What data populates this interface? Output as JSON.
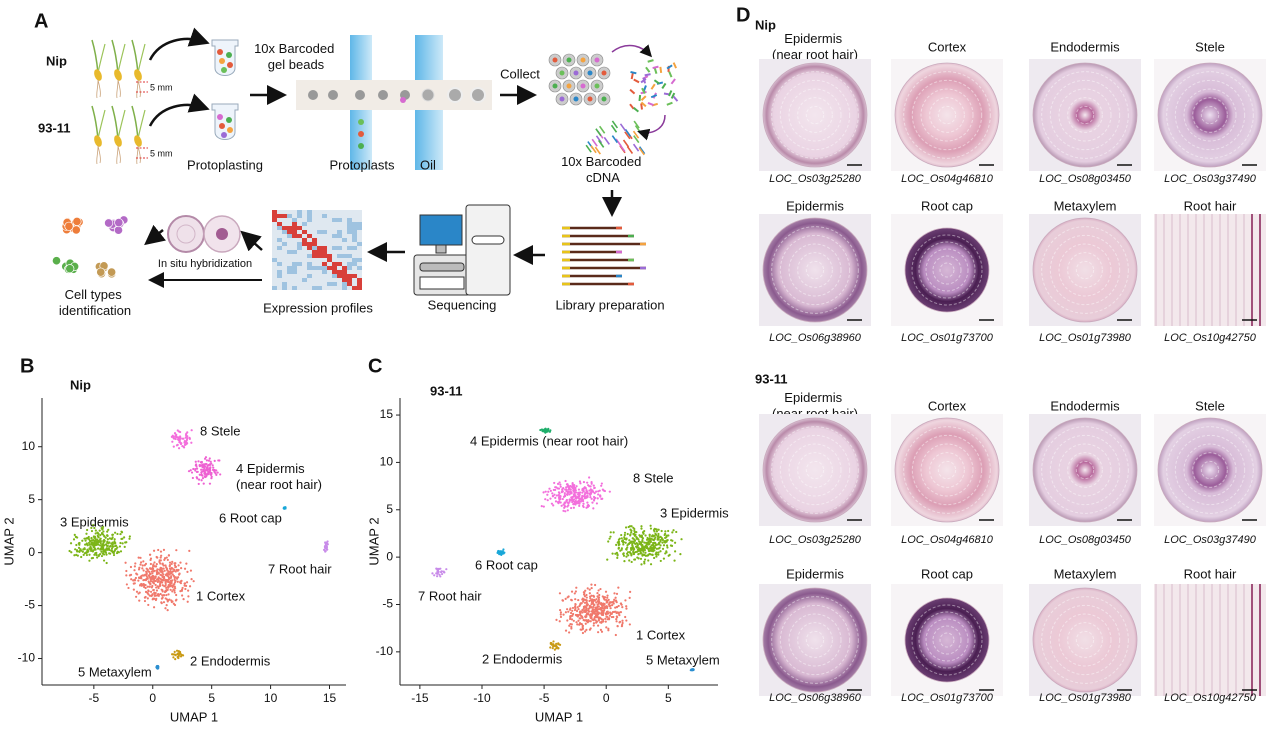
{
  "panel_a": {
    "label": "A",
    "samples": [
      "Nip",
      "93-11"
    ],
    "length": [
      "5 mm",
      "5 mm"
    ],
    "gel_beads": "10x Barcoded gel beads",
    "protoplasting": "Protoplasting",
    "protoplasts": "Protoplasts",
    "oil": "Oil",
    "collect": "Collect",
    "cdna": "10x Barcoded cDNA",
    "library": "Library preparation",
    "sequencing": "Sequencing",
    "profiles": "Expression profiles",
    "in_situ": "In situ hybridization",
    "identification": "Cell types identification"
  },
  "chart_data": [
    {
      "type": "scatter",
      "label": "B",
      "title": "Nip",
      "x_label": "UMAP 1",
      "y_label": "UMAP 2",
      "xlim": [
        -9.4,
        16.4
      ],
      "ylim": [
        -12.5,
        14.6
      ],
      "xticks": [
        -5,
        0,
        5,
        10,
        15
      ],
      "yticks": [
        -10,
        -5,
        0,
        5,
        10
      ],
      "series": [
        {
          "name": "1 Cortex",
          "color": "#f0796c",
          "x": [
            0.6
          ],
          "values": [
            -2.5
          ]
        },
        {
          "name": "2 Endodermis",
          "color": "#c99a14",
          "x": [
            2.1
          ],
          "values": [
            -9.6
          ]
        },
        {
          "name": "3 Epidermis",
          "color": "#7cb518",
          "x": [
            -4.5
          ],
          "values": [
            0.8
          ]
        },
        {
          "name": "4 Epidermis (near root hair)",
          "color": "#ee62d2",
          "x": [
            4.4
          ],
          "values": [
            7.8
          ]
        },
        {
          "name": "5 Metaxylem",
          "color": "#2b8fd0",
          "x": [
            0.4
          ],
          "values": [
            -10.8
          ]
        },
        {
          "name": "6 Root cap",
          "color": "#19a7d8",
          "x": [
            11.2
          ],
          "values": [
            4.2
          ]
        },
        {
          "name": "7 Root hair",
          "color": "#c88be9",
          "x": [
            14.7
          ],
          "values": [
            0.5
          ]
        },
        {
          "name": "8 Stele",
          "color": "#f36fdc",
          "x": [
            2.5
          ],
          "values": [
            10.7
          ]
        }
      ]
    },
    {
      "type": "scatter",
      "label": "C",
      "title": "93-11",
      "x_label": "UMAP 1",
      "y_label": "UMAP 2",
      "xlim": [
        -16.6,
        9.0
      ],
      "ylim": [
        -13.5,
        16.8
      ],
      "xticks": [
        -15,
        -10,
        -5,
        0,
        5
      ],
      "yticks": [
        -10,
        -5,
        0,
        5,
        10,
        15
      ],
      "series": [
        {
          "name": "1 Cortex",
          "color": "#f0796c",
          "x": [
            -0.9
          ],
          "values": [
            -5.6
          ]
        },
        {
          "name": "2 Endodermis",
          "color": "#c99a14",
          "x": [
            -4.1
          ],
          "values": [
            -9.3
          ]
        },
        {
          "name": "3 Epidermis",
          "color": "#7cb518",
          "x": [
            3.1
          ],
          "values": [
            1.3
          ]
        },
        {
          "name": "4 Epidermis (near root hair)",
          "color": "#1fae6b",
          "x": [
            -4.9
          ],
          "values": [
            13.4
          ]
        },
        {
          "name": "5 Metaxylem",
          "color": "#2b8fd0",
          "x": [
            6.9
          ],
          "values": [
            -11.9
          ]
        },
        {
          "name": "6 Root cap",
          "color": "#19a7d8",
          "x": [
            -8.5
          ],
          "values": [
            0.5
          ]
        },
        {
          "name": "7 Root hair",
          "color": "#c88be9",
          "x": [
            -13.4
          ],
          "values": [
            -1.6
          ]
        },
        {
          "name": "8 Stele",
          "color": "#f36fdc",
          "x": [
            -2.5
          ],
          "values": [
            6.5
          ]
        }
      ]
    }
  ],
  "panel_d": {
    "label": "D",
    "groups": [
      {
        "name": "Nip",
        "cells": [
          {
            "title": "Epidermis (near root hair)",
            "gene": "LOC_Os03g25280"
          },
          {
            "title": "Cortex",
            "gene": "LOC_Os04g46810"
          },
          {
            "title": "Endodermis",
            "gene": "LOC_Os08g03450"
          },
          {
            "title": "Stele",
            "gene": "LOC_Os03g37490"
          },
          {
            "title": "Epidermis",
            "gene": "LOC_Os06g38960"
          },
          {
            "title": "Root cap",
            "gene": "LOC_Os01g73700"
          },
          {
            "title": "Metaxylem",
            "gene": "LOC_Os01g73980"
          },
          {
            "title": "Root hair",
            "gene": "LOC_Os10g42750"
          }
        ]
      },
      {
        "name": "93-11",
        "cells": [
          {
            "title": "Epidermis (near root hair)",
            "gene": "LOC_Os03g25280"
          },
          {
            "title": "Cortex",
            "gene": "LOC_Os04g46810"
          },
          {
            "title": "Endodermis",
            "gene": "LOC_Os08g03450"
          },
          {
            "title": "Stele",
            "gene": "LOC_Os03g37490"
          },
          {
            "title": "Epidermis",
            "gene": "LOC_Os06g38960"
          },
          {
            "title": "Root cap",
            "gene": "LOC_Os01g73700"
          },
          {
            "title": "Metaxylem",
            "gene": "LOC_Os01g73980"
          },
          {
            "title": "Root hair",
            "gene": "LOC_Os10g42750"
          }
        ]
      }
    ]
  }
}
